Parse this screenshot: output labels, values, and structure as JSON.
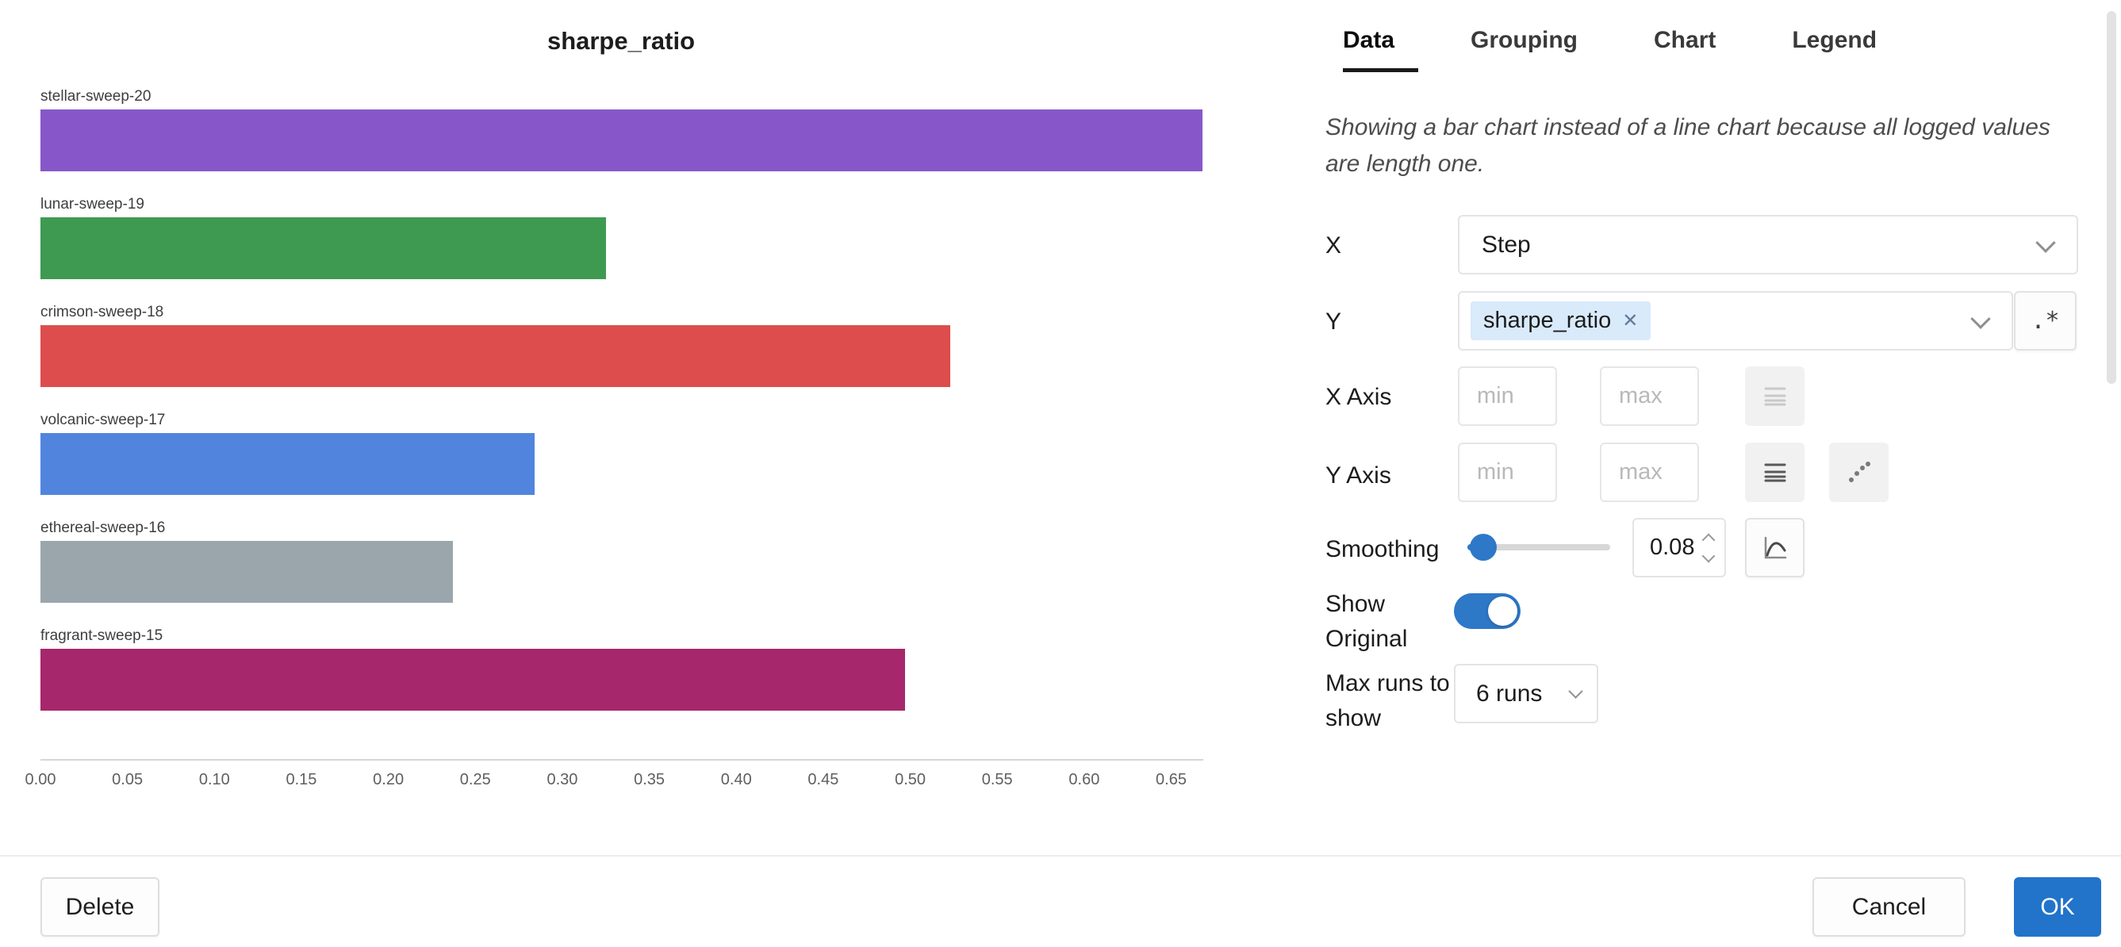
{
  "chart_data": {
    "type": "bar",
    "orientation": "horizontal",
    "title": "sharpe_ratio",
    "categories": [
      "stellar-sweep-20",
      "lunar-sweep-19",
      "crimson-sweep-18",
      "volcanic-sweep-17",
      "ethereal-sweep-16",
      "fragrant-sweep-15"
    ],
    "values": [
      0.668,
      0.325,
      0.523,
      0.284,
      0.237,
      0.497
    ],
    "colors": [
      "#8757c9",
      "#3f9a51",
      "#dd4d4d",
      "#5185dd",
      "#9ba6ac",
      "#a6276b"
    ],
    "xlim": [
      0,
      0.668
    ],
    "ticks": [
      0,
      0.05,
      0.1,
      0.15,
      0.2,
      0.25,
      0.3,
      0.35,
      0.4,
      0.45,
      0.5,
      0.55,
      0.6,
      0.65
    ],
    "tick_labels": [
      "0.00",
      "0.05",
      "0.10",
      "0.15",
      "0.20",
      "0.25",
      "0.30",
      "0.35",
      "0.40",
      "0.45",
      "0.50",
      "0.55",
      "0.60",
      "0.65"
    ],
    "grid": false,
    "legend": false
  },
  "panel": {
    "tabs": [
      {
        "label": "Data",
        "active": true
      },
      {
        "label": "Grouping",
        "active": false
      },
      {
        "label": "Chart",
        "active": false
      },
      {
        "label": "Legend",
        "active": false
      }
    ],
    "note": "Showing a bar chart instead of a line chart because all logged values are length one.",
    "form": {
      "x": {
        "label": "X",
        "value": "Step"
      },
      "y": {
        "label": "Y",
        "selected_tag": "sharpe_ratio",
        "remove_glyph": "✕",
        "regex_button_label": ".*"
      },
      "x_axis": {
        "label": "X Axis",
        "min_placeholder": "min",
        "max_placeholder": "max"
      },
      "y_axis": {
        "label": "Y Axis",
        "min_placeholder": "min",
        "max_placeholder": "max"
      },
      "smoothing": {
        "label": "Smoothing",
        "value": "0.08"
      },
      "show_original": {
        "label": "Show Original",
        "enabled": true
      },
      "max_runs": {
        "label": "Max runs to show",
        "value": "6 runs"
      }
    }
  },
  "footer": {
    "delete_label": "Delete",
    "cancel_label": "Cancel",
    "ok_label": "OK"
  },
  "colors": {
    "accent_blue": "#2e78c8",
    "tag_bg": "#d9eafb",
    "active_tab_underline": "#1a1a1a"
  }
}
